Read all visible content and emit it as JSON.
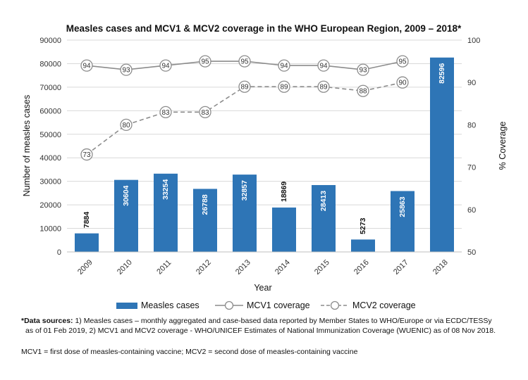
{
  "chart_data": {
    "type": "bar",
    "title": "Measles cases and MCV1 & MCV2 coverage in the WHO European Region, 2009 – 2018*",
    "xlabel": "Year",
    "ylabel": "Number of measles cases",
    "y2label": "% Coverage",
    "categories": [
      "2009",
      "2010",
      "2011",
      "2012",
      "2013",
      "2014",
      "2015",
      "2016",
      "2017",
      "2018"
    ],
    "ylim": [
      0,
      90000
    ],
    "yticks": [
      0,
      10000,
      20000,
      30000,
      40000,
      50000,
      60000,
      70000,
      80000,
      90000
    ],
    "y2lim": [
      50,
      100
    ],
    "y2ticks": [
      50,
      60,
      70,
      80,
      90,
      100
    ],
    "grid": "horizontal",
    "legend_position": "bottom",
    "series": [
      {
        "name": "Measles cases",
        "kind": "bar",
        "axis": "left",
        "color": "#2e75b6",
        "values": [
          7884,
          30604,
          33254,
          26788,
          32857,
          18869,
          28413,
          5273,
          25863,
          82596
        ],
        "labels": [
          "7884",
          "30604",
          "33254",
          "26788",
          "32857",
          "18869",
          "28413",
          "5273",
          "25863",
          "82596"
        ]
      },
      {
        "name": "MCV1 coverage",
        "kind": "line",
        "style": "solid",
        "axis": "right",
        "color": "#8c8c8c",
        "values": [
          94,
          93,
          94,
          95,
          95,
          94,
          94,
          93,
          95,
          null
        ],
        "labels": [
          "94",
          "93",
          "94",
          "95",
          "95",
          "94",
          "94",
          "93",
          "95",
          ""
        ]
      },
      {
        "name": "MCV2 coverage",
        "kind": "line",
        "style": "dashed",
        "axis": "right",
        "color": "#8c8c8c",
        "values": [
          73,
          80,
          83,
          83,
          89,
          89,
          89,
          88,
          90,
          null
        ],
        "labels": [
          "73",
          "80",
          "83",
          "83",
          "89",
          "89",
          "89",
          "88",
          "90",
          ""
        ]
      }
    ]
  },
  "footnotes": {
    "sources_bold": "*Data sources:",
    "sources_line1": " 1) Measles cases – monthly aggregated and case-based data reported by Member States to WHO/Europe or via ECDC/TESSy",
    "sources_line2": "as of 01 Feb 2019, 2) MCV1 and MCV2 coverage - WHO/UNICEF Estimates of National Immunization Coverage (WUENIC) as of 08 Nov 2018.",
    "definitions": "MCV1 = first dose of measles-containing vaccine; MCV2 = second dose of measles-containing vaccine"
  }
}
